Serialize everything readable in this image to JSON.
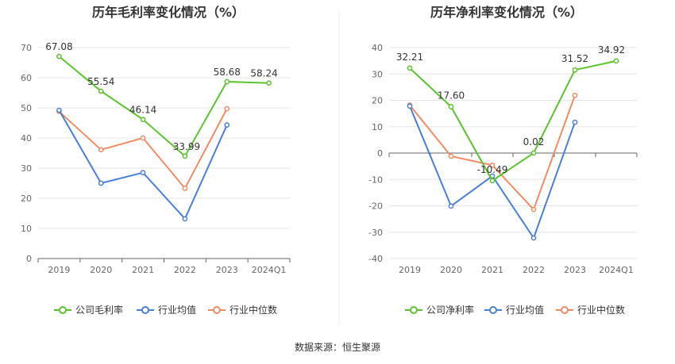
{
  "chart_data": [
    {
      "type": "line",
      "title": "历年毛利率变化情况（%）",
      "categories": [
        "2019",
        "2020",
        "2021",
        "2022",
        "2023",
        "2024Q1"
      ],
      "ylim": [
        0,
        70
      ],
      "yticks": [
        0,
        10,
        20,
        30,
        40,
        50,
        60,
        70
      ],
      "grid": true,
      "legend_position": "bottom",
      "series": [
        {
          "name": "公司毛利率",
          "color": "#5cc32d",
          "values": [
            67.08,
            55.54,
            46.14,
            33.99,
            58.68,
            58.24
          ],
          "labels": [
            "67.08",
            "55.54",
            "46.14",
            "33.99",
            "58.68",
            "58.24"
          ]
        },
        {
          "name": "行业均值",
          "color": "#4a7fd8",
          "values": [
            49.2,
            25.0,
            28.5,
            13.2,
            44.3,
            null
          ]
        },
        {
          "name": "行业中位数",
          "color": "#f08c64",
          "values": [
            48.8,
            36.1,
            40.0,
            23.3,
            49.7,
            null
          ]
        }
      ]
    },
    {
      "type": "line",
      "title": "历年净利率变化情况（%）",
      "categories": [
        "2019",
        "2020",
        "2021",
        "2022",
        "2023",
        "2024Q1"
      ],
      "ylim": [
        -40,
        40
      ],
      "yticks": [
        -40,
        -30,
        -20,
        -10,
        0,
        10,
        20,
        30,
        40
      ],
      "grid": true,
      "legend_position": "bottom",
      "series": [
        {
          "name": "公司净利率",
          "color": "#5cc32d",
          "values": [
            32.21,
            17.6,
            -10.49,
            0.02,
            31.52,
            34.92
          ],
          "labels": [
            "32.21",
            "17.60",
            "-10.49",
            "0.02",
            "31.52",
            "34.92"
          ]
        },
        {
          "name": "行业均值",
          "color": "#4a7fd8",
          "values": [
            17.8,
            -20.1,
            -8.7,
            -32.2,
            11.7,
            null
          ]
        },
        {
          "name": "行业中位数",
          "color": "#f08c64",
          "values": [
            18.2,
            -1.2,
            -4.6,
            -21.4,
            21.9,
            null
          ]
        }
      ]
    }
  ],
  "footer": {
    "source": "数据来源：恒生聚源"
  }
}
